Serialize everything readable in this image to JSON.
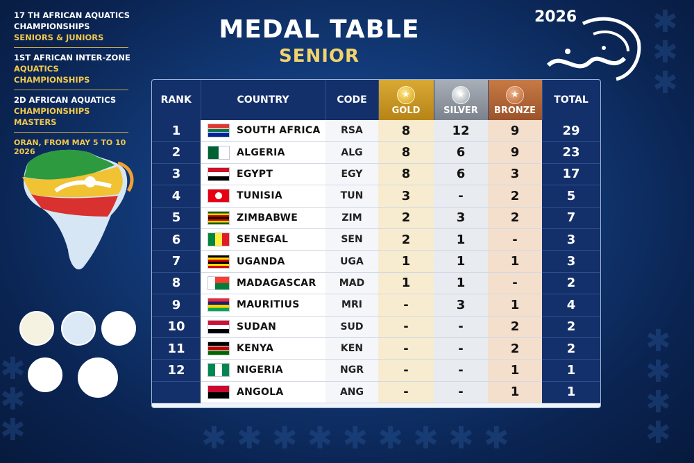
{
  "event_info": {
    "line1": "17 TH AFRICAN AQUATICS",
    "line2": "CHAMPIONSHIPS",
    "line3": "SENIORS & JUNIORS",
    "line4": "1ST AFRICAN INTER-ZONE",
    "line5": "AQUATICS CHAMPIONSHIPS",
    "line6": "2D AFRICAN AQUATICS",
    "line7": "CHAMPIONSHIPS MASTERS",
    "date": "ORAN, FROM MAY 5 TO 10  2026"
  },
  "header": {
    "title": "MEDAL TABLE",
    "subtitle": "SENIOR"
  },
  "brand": {
    "year": "2026"
  },
  "table": {
    "columns": {
      "rank": "RANK",
      "country": "COUNTRY",
      "code": "CODE",
      "gold": "GOLD",
      "silver": "SILVER",
      "bronze": "BRONZE",
      "total": "TOTAL"
    },
    "rows": [
      {
        "rank": "1",
        "country": "SOUTH AFRICA",
        "code": "RSA",
        "gold": "8",
        "silver": "12",
        "bronze": "9",
        "total": "29",
        "flag": "za"
      },
      {
        "rank": "2",
        "country": "ALGERIA",
        "code": "ALG",
        "gold": "8",
        "silver": "6",
        "bronze": "9",
        "total": "23",
        "flag": "dz"
      },
      {
        "rank": "3",
        "country": "EGYPT",
        "code": "EGY",
        "gold": "8",
        "silver": "6",
        "bronze": "3",
        "total": "17",
        "flag": "eg"
      },
      {
        "rank": "4",
        "country": "TUNISIA",
        "code": "TUN",
        "gold": "3",
        "silver": "-",
        "bronze": "2",
        "total": "5",
        "flag": "tn"
      },
      {
        "rank": "5",
        "country": "ZIMBABWE",
        "code": "ZIM",
        "gold": "2",
        "silver": "3",
        "bronze": "2",
        "total": "7",
        "flag": "zw"
      },
      {
        "rank": "6",
        "country": "SENEGAL",
        "code": "SEN",
        "gold": "2",
        "silver": "1",
        "bronze": "-",
        "total": "3",
        "flag": "sn"
      },
      {
        "rank": "7",
        "country": "UGANDA",
        "code": "UGA",
        "gold": "1",
        "silver": "1",
        "bronze": "1",
        "total": "3",
        "flag": "ug"
      },
      {
        "rank": "8",
        "country": "MADAGASCAR",
        "code": "MAD",
        "gold": "1",
        "silver": "1",
        "bronze": "-",
        "total": "2",
        "flag": "mg"
      },
      {
        "rank": "9",
        "country": "MAURITIUS",
        "code": "MRI",
        "gold": "-",
        "silver": "3",
        "bronze": "1",
        "total": "4",
        "flag": "mu"
      },
      {
        "rank": "10",
        "country": "SUDAN",
        "code": "SUD",
        "gold": "-",
        "silver": "-",
        "bronze": "2",
        "total": "2",
        "flag": "sd"
      },
      {
        "rank": "11",
        "country": "KENYA",
        "code": "KEN",
        "gold": "-",
        "silver": "-",
        "bronze": "2",
        "total": "2",
        "flag": "ke"
      },
      {
        "rank": "12",
        "country": "NIGERIA",
        "code": "NGR",
        "gold": "-",
        "silver": "-",
        "bronze": "1",
        "total": "1",
        "flag": "ng"
      },
      {
        "rank": "",
        "country": "ANGOLA",
        "code": "ANG",
        "gold": "-",
        "silver": "-",
        "bronze": "1",
        "total": "1",
        "flag": "ao"
      }
    ]
  },
  "colors": {
    "navy": "#14306a",
    "gold": "#d9a934",
    "silver": "#a9afb8",
    "bronze": "#c87a45",
    "accent_yellow": "#f2c94c"
  },
  "icons": {
    "gold_medal": "gold-medal-icon",
    "silver_medal": "silver-medal-icon",
    "bronze_medal": "bronze-medal-icon"
  }
}
